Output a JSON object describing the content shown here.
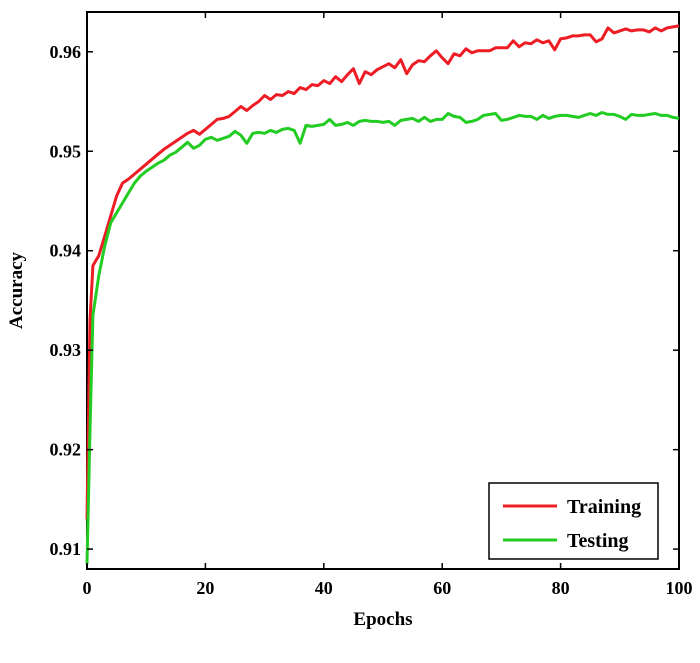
{
  "chart_data": {
    "type": "line",
    "xlabel": "Epochs",
    "ylabel": "Accuracy",
    "xlim": [
      0,
      100
    ],
    "ylim": [
      0.908,
      0.964
    ],
    "xticks": [
      0,
      20,
      40,
      60,
      80,
      100
    ],
    "xtick_labels": [
      "0",
      "20",
      "40",
      "60",
      "80",
      "100"
    ],
    "yticks": [
      0.91,
      0.92,
      0.93,
      0.94,
      0.95,
      0.96
    ],
    "ytick_labels": [
      "0.91",
      "0.92",
      "0.93",
      "0.94",
      "0.95",
      "0.96"
    ],
    "grid": false,
    "legend_position": "bottom-right",
    "series": [
      {
        "name": "Training",
        "color": "#ee1c24",
        "x": [
          0,
          0.5,
          1,
          2,
          3,
          4,
          5,
          6,
          7,
          8,
          9,
          10,
          11,
          12,
          13,
          14,
          15,
          16,
          17,
          18,
          19,
          20,
          21,
          22,
          23,
          24,
          25,
          26,
          27,
          28,
          29,
          30,
          31,
          32,
          33,
          34,
          35,
          36,
          37,
          38,
          39,
          40,
          41,
          42,
          43,
          44,
          45,
          46,
          47,
          48,
          49,
          50,
          51,
          52,
          53,
          54,
          55,
          56,
          57,
          58,
          59,
          60,
          61,
          62,
          63,
          64,
          65,
          66,
          67,
          68,
          69,
          70,
          71,
          72,
          73,
          74,
          75,
          76,
          77,
          78,
          79,
          80,
          81,
          82,
          83,
          84,
          85,
          86,
          87,
          88,
          89,
          90,
          91,
          92,
          93,
          94,
          95,
          96,
          97,
          98,
          99,
          100
        ],
        "values": [
          0.913,
          0.933,
          0.9385,
          0.9395,
          0.9415,
          0.9435,
          0.9455,
          0.9468,
          0.9472,
          0.9477,
          0.9482,
          0.9487,
          0.9492,
          0.9497,
          0.9502,
          0.9506,
          0.951,
          0.9514,
          0.9518,
          0.9521,
          0.9517,
          0.9522,
          0.9527,
          0.9532,
          0.9533,
          0.9535,
          0.954,
          0.9545,
          0.9541,
          0.9546,
          0.955,
          0.9556,
          0.9552,
          0.9557,
          0.9556,
          0.956,
          0.9558,
          0.9564,
          0.9562,
          0.9567,
          0.9566,
          0.9571,
          0.9568,
          0.9575,
          0.957,
          0.9577,
          0.9583,
          0.9568,
          0.958,
          0.9577,
          0.9582,
          0.9585,
          0.9588,
          0.9584,
          0.9592,
          0.9578,
          0.9587,
          0.9591,
          0.959,
          0.9596,
          0.9601,
          0.9594,
          0.9588,
          0.9598,
          0.9596,
          0.9603,
          0.9599,
          0.9601,
          0.9601,
          0.9601,
          0.9604,
          0.9604,
          0.9604,
          0.9611,
          0.9605,
          0.9609,
          0.9608,
          0.9612,
          0.9609,
          0.9611,
          0.9602,
          0.9613,
          0.9614,
          0.9616,
          0.9616,
          0.9617,
          0.9617,
          0.961,
          0.9613,
          0.9624,
          0.9619,
          0.9621,
          0.9623,
          0.9621,
          0.9622,
          0.9622,
          0.962,
          0.9624,
          0.9621,
          0.9624,
          0.9625,
          0.9626
        ]
      },
      {
        "name": "Testing",
        "color": "#22cc22",
        "x": [
          0,
          0.5,
          1,
          2,
          3,
          4,
          5,
          6,
          7,
          8,
          9,
          10,
          11,
          12,
          13,
          14,
          15,
          16,
          17,
          18,
          19,
          20,
          21,
          22,
          23,
          24,
          25,
          26,
          27,
          28,
          29,
          30,
          31,
          32,
          33,
          34,
          35,
          36,
          37,
          38,
          39,
          40,
          41,
          42,
          43,
          44,
          45,
          46,
          47,
          48,
          49,
          50,
          51,
          52,
          53,
          54,
          55,
          56,
          57,
          58,
          59,
          60,
          61,
          62,
          63,
          64,
          65,
          66,
          67,
          68,
          69,
          70,
          71,
          72,
          73,
          74,
          75,
          76,
          77,
          78,
          79,
          80,
          81,
          82,
          83,
          84,
          85,
          86,
          87,
          88,
          89,
          90,
          91,
          92,
          93,
          94,
          95,
          96,
          97,
          98,
          99,
          100
        ],
        "values": [
          0.9085,
          0.922,
          0.9335,
          0.9375,
          0.9405,
          0.9428,
          0.9438,
          0.9448,
          0.9458,
          0.9468,
          0.9475,
          0.948,
          0.9484,
          0.9488,
          0.9491,
          0.9496,
          0.9499,
          0.9504,
          0.9509,
          0.9503,
          0.9506,
          0.9512,
          0.9514,
          0.9511,
          0.9513,
          0.9515,
          0.952,
          0.9516,
          0.9508,
          0.9518,
          0.9519,
          0.9518,
          0.9521,
          0.9519,
          0.9522,
          0.9523,
          0.9521,
          0.9508,
          0.9526,
          0.9525,
          0.9526,
          0.9527,
          0.9532,
          0.9526,
          0.9527,
          0.9529,
          0.9526,
          0.953,
          0.9531,
          0.953,
          0.953,
          0.9529,
          0.953,
          0.9526,
          0.9531,
          0.9532,
          0.9533,
          0.953,
          0.9534,
          0.953,
          0.9532,
          0.9532,
          0.9538,
          0.9535,
          0.9534,
          0.9529,
          0.953,
          0.9532,
          0.9536,
          0.9537,
          0.9538,
          0.9531,
          0.9532,
          0.9534,
          0.9536,
          0.9535,
          0.9535,
          0.9532,
          0.9536,
          0.9533,
          0.9535,
          0.9536,
          0.9536,
          0.9535,
          0.9534,
          0.9536,
          0.9538,
          0.9536,
          0.9539,
          0.9537,
          0.9537,
          0.9535,
          0.9532,
          0.9537,
          0.9536,
          0.9536,
          0.9537,
          0.9538,
          0.9536,
          0.9536,
          0.9534,
          0.9533
        ]
      }
    ]
  }
}
